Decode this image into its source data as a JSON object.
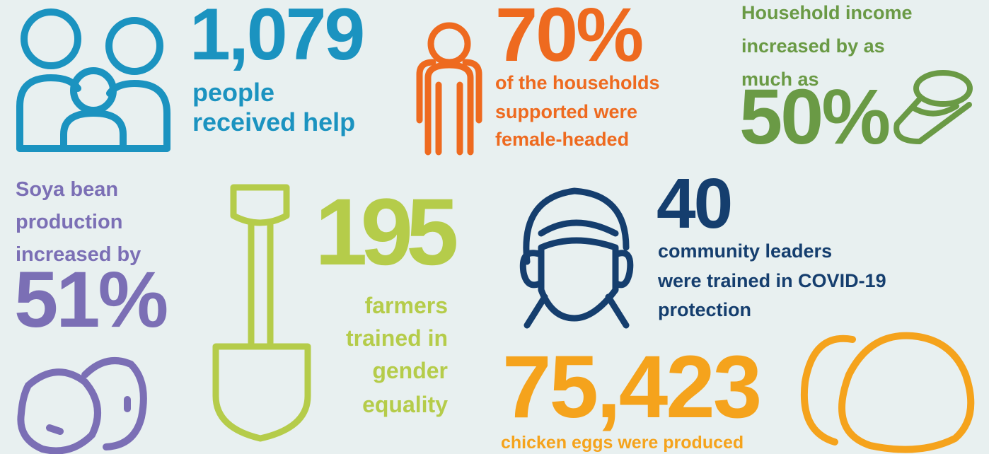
{
  "stats": [
    {
      "value": "1,079",
      "caption": [
        "people",
        "received help"
      ]
    },
    {
      "value": "70%",
      "caption": [
        "of the households",
        "supported were",
        "female-headed"
      ]
    },
    {
      "lead": [
        "Household income",
        "increased by as",
        "much as"
      ],
      "value": "50%"
    },
    {
      "lead": [
        "Soya bean",
        "production",
        "increased by"
      ],
      "value": "51%"
    },
    {
      "value": "195",
      "caption": [
        "farmers",
        "trained in",
        "gender",
        "equality"
      ]
    },
    {
      "value": "40",
      "caption": [
        "community leaders",
        "were trained in COVID-19",
        "protection"
      ]
    },
    {
      "value": "75,423",
      "caption": [
        "chicken eggs were produced"
      ]
    }
  ]
}
